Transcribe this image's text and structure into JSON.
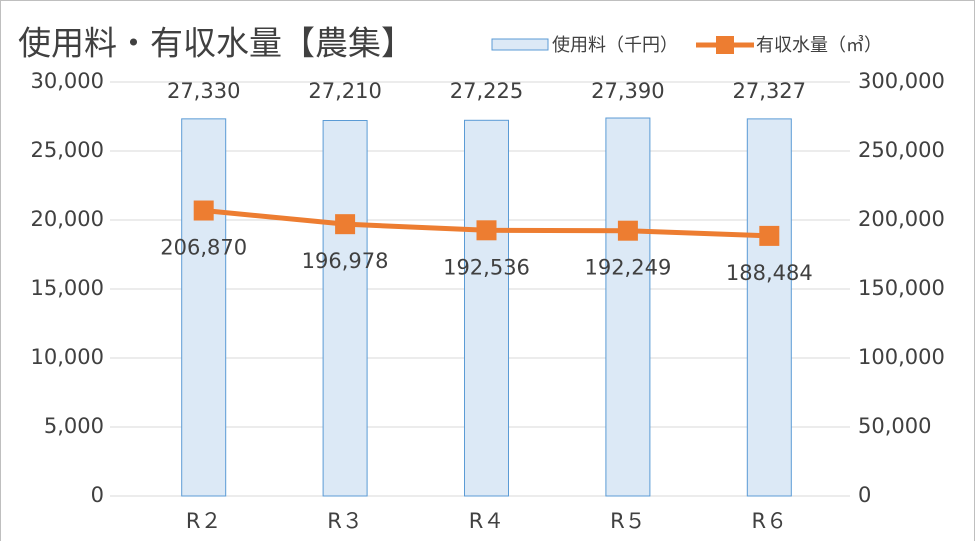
{
  "chart_data": {
    "type": "bar",
    "title": "使用料・有収水量【農集】",
    "categories": [
      "R２",
      "R３",
      "R４",
      "R５",
      "R６"
    ],
    "series": [
      {
        "name": "使用料（千円）",
        "type": "bar",
        "color": "#dce9f6",
        "edge_color": "#5b9bd5",
        "values": [
          27330,
          27210,
          27225,
          27390,
          27327
        ],
        "value_labels": [
          "27,330",
          "27,210",
          "27,225",
          "27,390",
          "27,327"
        ]
      },
      {
        "name": "有収水量（㎥）",
        "type": "line",
        "axis": "y2",
        "color": "#ed7d31",
        "values": [
          206870,
          196978,
          192536,
          192249,
          188484
        ],
        "value_labels": [
          "206,870",
          "196,978",
          "192,536",
          "192,249",
          "188,484"
        ]
      }
    ],
    "ylim": [
      0,
      30000
    ],
    "yticks": [
      0,
      {
        "value": 5000,
        "label": "5,000"
      },
      {
        "value": 10000,
        "label": "10,000"
      },
      {
        "value": 15000,
        "label": "15,000"
      },
      {
        "value": 20000,
        "label": "20,000"
      },
      {
        "value": 25000,
        "label": "25,000"
      },
      {
        "value": 30000,
        "label": "30,000"
      }
    ],
    "y2lim": [
      0,
      300000
    ],
    "y2ticks": [
      0,
      {
        "value": 50000,
        "label": "50,000"
      },
      {
        "value": 100000,
        "label": "100,000"
      },
      {
        "value": 150000,
        "label": "150,000"
      },
      {
        "value": 200000,
        "label": "200,000"
      },
      {
        "value": 250000,
        "label": "250,000"
      },
      {
        "value": 300000,
        "label": "300,000"
      }
    ],
    "grid": true,
    "legend": "top-right"
  }
}
